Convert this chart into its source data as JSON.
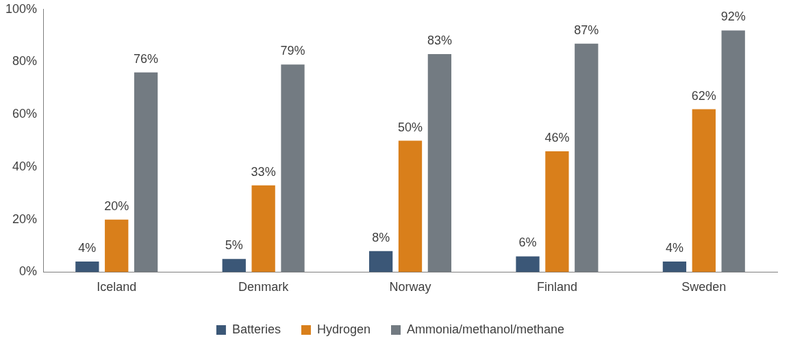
{
  "chart_data": {
    "type": "bar",
    "categories": [
      "Iceland",
      "Denmark",
      "Norway",
      "Finland",
      "Sweden"
    ],
    "series": [
      {
        "name": "Batteries",
        "color": "#3b5777",
        "values": [
          4,
          5,
          8,
          6,
          4
        ],
        "value_labels": [
          "4%",
          "5%",
          "8%",
          "6%",
          "4%"
        ]
      },
      {
        "name": "Hydrogen",
        "color": "#d97f1b",
        "values": [
          20,
          33,
          50,
          46,
          62
        ],
        "value_labels": [
          "20%",
          "33%",
          "50%",
          "46%",
          "62%"
        ]
      },
      {
        "name": "Ammonia/methanol/methane",
        "color": "#737b82",
        "values": [
          76,
          79,
          83,
          87,
          92
        ],
        "value_labels": [
          "76%",
          "79%",
          "83%",
          "87%",
          "92%"
        ]
      }
    ],
    "ylim": [
      0,
      100
    ],
    "yticks": [
      {
        "value": 0,
        "label": "0%"
      },
      {
        "value": 20,
        "label": "20%"
      },
      {
        "value": 40,
        "label": "40%"
      },
      {
        "value": 60,
        "label": "60%"
      },
      {
        "value": 80,
        "label": "80%"
      },
      {
        "value": 100,
        "label": "100%"
      }
    ],
    "grid": false,
    "legend": "bottom"
  }
}
